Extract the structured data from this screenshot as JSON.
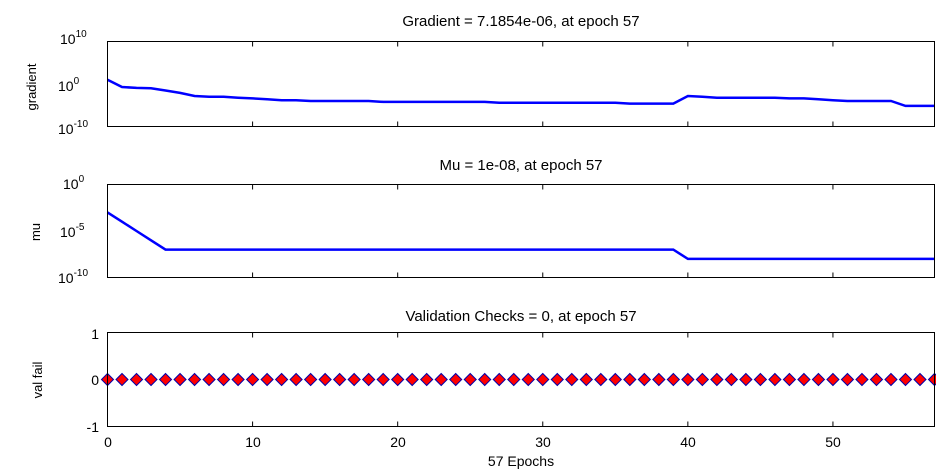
{
  "chart_data": [
    {
      "type": "line",
      "title": "Gradient = 7.1854e-06, at epoch 57",
      "ylabel": "gradient",
      "yscale": "log",
      "ylim": [
        1e-10,
        10000000000.0
      ],
      "yticks": [
        {
          "base": "10",
          "exp": "10"
        },
        {
          "base": "10",
          "exp": "0"
        },
        {
          "base": "10",
          "exp": "-10"
        }
      ],
      "xlim": [
        0,
        57
      ],
      "color": "#0000ff",
      "series": [
        {
          "x": [
            0,
            1,
            2,
            3,
            4,
            5,
            6,
            7,
            8,
            9,
            10,
            11,
            12,
            13,
            14,
            15,
            16,
            17,
            18,
            19,
            20,
            21,
            22,
            23,
            24,
            25,
            26,
            27,
            28,
            29,
            30,
            31,
            32,
            33,
            34,
            35,
            36,
            37,
            38,
            39,
            40,
            41,
            42,
            43,
            44,
            45,
            46,
            47,
            48,
            49,
            50,
            51,
            52,
            53,
            54,
            55,
            56,
            57
          ],
          "y": [
            10,
            0.2,
            0.12,
            0.1,
            0.03,
            0.008,
            0.0015,
            0.001,
            0.001,
            0.0006,
            0.0004,
            0.00025,
            0.00015,
            0.00015,
            0.0001,
            0.0001,
            0.0001,
            0.0001,
            0.0001,
            6e-05,
            6e-05,
            6e-05,
            6e-05,
            6e-05,
            6e-05,
            6e-05,
            6e-05,
            4e-05,
            4e-05,
            4e-05,
            4e-05,
            4e-05,
            4e-05,
            4e-05,
            4e-05,
            4e-05,
            2.5e-05,
            2.5e-05,
            2.5e-05,
            2.5e-05,
            0.0015,
            0.001,
            0.0006,
            0.0006,
            0.0006,
            0.0006,
            0.0006,
            0.0004,
            0.0004,
            0.00025,
            0.00015,
            0.0001,
            0.0001,
            0.0001,
            0.0001,
            7.1854e-06,
            7.1854e-06,
            7.1854e-06
          ]
        }
      ]
    },
    {
      "type": "line",
      "title": "Mu = 1e-08, at epoch 57",
      "ylabel": "mu",
      "yscale": "log",
      "ylim": [
        1e-10,
        1
      ],
      "yticks": [
        {
          "base": "10",
          "exp": "0"
        },
        {
          "base": "10",
          "exp": "-5"
        },
        {
          "base": "10",
          "exp": "-10"
        }
      ],
      "xlim": [
        0,
        57
      ],
      "color": "#0000ff",
      "series": [
        {
          "x": [
            0,
            1,
            2,
            3,
            4,
            5,
            6,
            7,
            8,
            9,
            10,
            11,
            12,
            13,
            14,
            15,
            16,
            17,
            18,
            19,
            20,
            21,
            22,
            23,
            24,
            25,
            26,
            27,
            28,
            29,
            30,
            31,
            32,
            33,
            34,
            35,
            36,
            37,
            38,
            39,
            40,
            41,
            42,
            43,
            44,
            45,
            46,
            47,
            48,
            49,
            50,
            51,
            52,
            53,
            54,
            55,
            56,
            57
          ],
          "y": [
            0.001,
            0.0001,
            1e-05,
            1e-06,
            1e-07,
            1e-07,
            1e-07,
            1e-07,
            1e-07,
            1e-07,
            1e-07,
            1e-07,
            1e-07,
            1e-07,
            1e-07,
            1e-07,
            1e-07,
            1e-07,
            1e-07,
            1e-07,
            1e-07,
            1e-07,
            1e-07,
            1e-07,
            1e-07,
            1e-07,
            1e-07,
            1e-07,
            1e-07,
            1e-07,
            1e-07,
            1e-07,
            1e-07,
            1e-07,
            1e-07,
            1e-07,
            1e-07,
            1e-07,
            1e-07,
            1e-07,
            1e-08,
            1e-08,
            1e-08,
            1e-08,
            1e-08,
            1e-08,
            1e-08,
            1e-08,
            1e-08,
            1e-08,
            1e-08,
            1e-08,
            1e-08,
            1e-08,
            1e-08,
            1e-08,
            1e-08,
            1e-08
          ]
        }
      ]
    },
    {
      "type": "scatter",
      "title": "Validation Checks = 0, at epoch 57",
      "ylabel": "val fail",
      "ylim": [
        -1,
        1
      ],
      "yticks": [
        "1",
        "0",
        "-1"
      ],
      "xlim": [
        0,
        57
      ],
      "xticks": [
        "0",
        "10",
        "20",
        "30",
        "40",
        "50"
      ],
      "xlabel": "57 Epochs",
      "marker_fill": "#ff0000",
      "marker_edge": "#0000aa",
      "series": [
        {
          "x": [
            0,
            1,
            2,
            3,
            4,
            5,
            6,
            7,
            8,
            9,
            10,
            11,
            12,
            13,
            14,
            15,
            16,
            17,
            18,
            19,
            20,
            21,
            22,
            23,
            24,
            25,
            26,
            27,
            28,
            29,
            30,
            31,
            32,
            33,
            34,
            35,
            36,
            37,
            38,
            39,
            40,
            41,
            42,
            43,
            44,
            45,
            46,
            47,
            48,
            49,
            50,
            51,
            52,
            53,
            54,
            55,
            56,
            57
          ],
          "y": [
            0,
            0,
            0,
            0,
            0,
            0,
            0,
            0,
            0,
            0,
            0,
            0,
            0,
            0,
            0,
            0,
            0,
            0,
            0,
            0,
            0,
            0,
            0,
            0,
            0,
            0,
            0,
            0,
            0,
            0,
            0,
            0,
            0,
            0,
            0,
            0,
            0,
            0,
            0,
            0,
            0,
            0,
            0,
            0,
            0,
            0,
            0,
            0,
            0,
            0,
            0,
            0,
            0,
            0,
            0,
            0,
            0,
            0
          ]
        }
      ]
    }
  ]
}
